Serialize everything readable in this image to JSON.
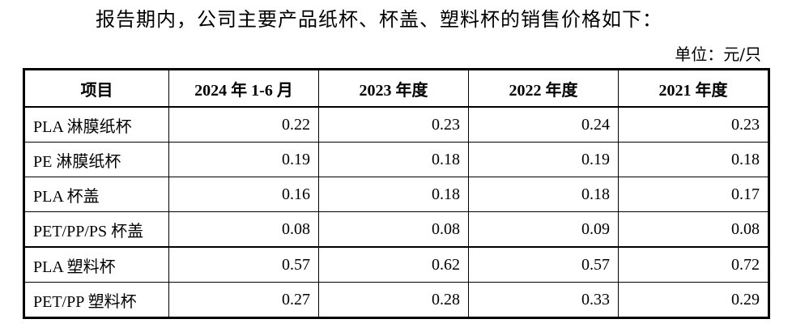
{
  "document": {
    "intro_text": "报告期内，公司主要产品纸杯、杯盖、塑料杯的销售价格如下：",
    "unit_label": "单位：元/只"
  },
  "table": {
    "headers": [
      "项目",
      "2024 年 1-6 月",
      "2023 年度",
      "2022 年度",
      "2021 年度"
    ],
    "rows": [
      {
        "name": "PLA 淋膜纸杯",
        "values": [
          "0.22",
          "0.23",
          "0.24",
          "0.23"
        ]
      },
      {
        "name": "PE 淋膜纸杯",
        "values": [
          "0.19",
          "0.18",
          "0.19",
          "0.18"
        ]
      },
      {
        "name": "PLA 杯盖",
        "values": [
          "0.16",
          "0.18",
          "0.18",
          "0.17"
        ]
      },
      {
        "name": "PET/PP/PS 杯盖",
        "values": [
          "0.08",
          "0.08",
          "0.09",
          "0.08"
        ]
      },
      {
        "name": "PLA 塑料杯",
        "values": [
          "0.57",
          "0.62",
          "0.57",
          "0.72"
        ]
      },
      {
        "name": "PET/PP 塑料杯",
        "values": [
          "0.27",
          "0.28",
          "0.33",
          "0.29"
        ]
      }
    ]
  }
}
